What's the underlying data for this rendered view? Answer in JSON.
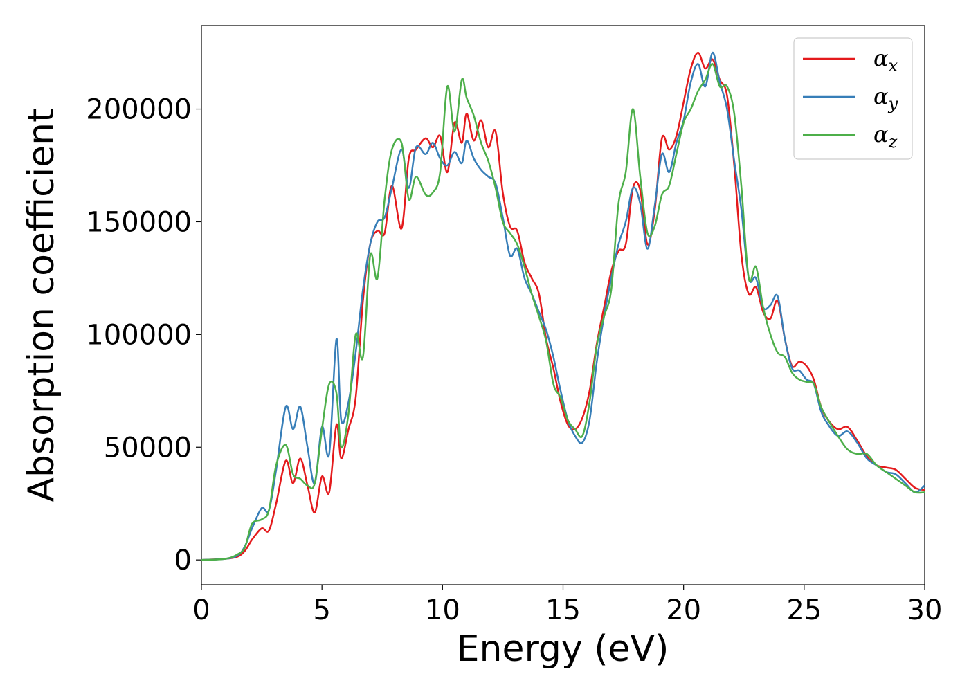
{
  "chart_data": {
    "type": "line",
    "title": "",
    "xlabel": "Energy (eV)",
    "ylabel": "Absorption coefficient",
    "xlim": [
      0,
      30
    ],
    "ylim": [
      -11000,
      237000
    ],
    "xticks": [
      0,
      5,
      10,
      15,
      20,
      25,
      30
    ],
    "yticks": [
      0,
      50000,
      100000,
      150000,
      200000
    ],
    "grid": false,
    "legend": "top-right",
    "series": [
      {
        "name": "αx",
        "base": "α",
        "sub": "x",
        "color": "#e41a1c",
        "x": [
          0,
          1,
          1.5,
          1.8,
          2.1,
          2.5,
          2.8,
          3.1,
          3.5,
          3.8,
          4.1,
          4.4,
          4.7,
          5.0,
          5.3,
          5.6,
          5.8,
          6.1,
          6.4,
          6.7,
          7.0,
          7.3,
          7.6,
          7.9,
          8.3,
          8.6,
          8.9,
          9.3,
          9.6,
          9.9,
          10.2,
          10.5,
          10.8,
          11.0,
          11.3,
          11.6,
          11.9,
          12.2,
          12.5,
          12.8,
          13.1,
          13.4,
          13.7,
          14.0,
          14.3,
          14.6,
          14.9,
          15.2,
          15.5,
          15.8,
          16.1,
          16.4,
          16.7,
          17.0,
          17.3,
          17.6,
          17.9,
          18.2,
          18.5,
          18.8,
          19.1,
          19.4,
          19.7,
          20.0,
          20.3,
          20.6,
          20.9,
          21.2,
          21.5,
          21.8,
          22.1,
          22.4,
          22.7,
          23.0,
          23.3,
          23.6,
          23.9,
          24.2,
          24.5,
          24.8,
          25.1,
          25.4,
          25.7,
          26.0,
          26.4,
          26.8,
          27.2,
          27.6,
          28.0,
          28.4,
          28.8,
          29.2,
          29.6,
          30
        ],
        "y": [
          0,
          500,
          1500,
          4000,
          9000,
          14000,
          13000,
          25000,
          44000,
          34000,
          45000,
          33000,
          21000,
          37000,
          30000,
          60000,
          45000,
          58000,
          72000,
          115000,
          140000,
          146000,
          145000,
          166000,
          147000,
          178000,
          182000,
          187000,
          183000,
          188000,
          172000,
          194000,
          185000,
          198000,
          186000,
          195000,
          183000,
          190000,
          163000,
          148000,
          146000,
          132000,
          125000,
          118000,
          98000,
          85000,
          70000,
          60000,
          58000,
          63000,
          75000,
          96000,
          112000,
          128000,
          137000,
          140000,
          165000,
          164000,
          140000,
          155000,
          187000,
          182000,
          188000,
          203000,
          218000,
          225000,
          218000,
          222000,
          213000,
          206000,
          175000,
          135000,
          118000,
          121000,
          110000,
          107000,
          115000,
          98000,
          86000,
          88000,
          86000,
          80000,
          68000,
          62000,
          58000,
          59000,
          53000,
          46000,
          42000,
          41000,
          40000,
          36000,
          32000,
          31000
        ]
      },
      {
        "name": "αy",
        "base": "α",
        "sub": "y",
        "color": "#377eb8",
        "x": [
          0,
          1,
          1.5,
          1.8,
          2.1,
          2.5,
          2.8,
          3.1,
          3.5,
          3.8,
          4.1,
          4.4,
          4.7,
          5.0,
          5.3,
          5.6,
          5.8,
          6.1,
          6.4,
          6.7,
          7.0,
          7.3,
          7.6,
          7.9,
          8.3,
          8.6,
          8.9,
          9.3,
          9.6,
          9.9,
          10.2,
          10.5,
          10.8,
          11.0,
          11.3,
          11.6,
          11.9,
          12.2,
          12.5,
          12.8,
          13.1,
          13.4,
          13.7,
          14.0,
          14.3,
          14.6,
          14.9,
          15.2,
          15.5,
          15.8,
          16.1,
          16.4,
          16.7,
          17.0,
          17.3,
          17.6,
          17.9,
          18.2,
          18.5,
          18.8,
          19.1,
          19.4,
          19.7,
          20.0,
          20.3,
          20.6,
          20.9,
          21.2,
          21.5,
          21.8,
          22.1,
          22.4,
          22.7,
          23.0,
          23.3,
          23.6,
          23.9,
          24.2,
          24.5,
          24.8,
          25.1,
          25.4,
          25.7,
          26.0,
          26.4,
          26.8,
          27.2,
          27.6,
          28.0,
          28.4,
          28.8,
          29.2,
          29.6,
          30
        ],
        "y": [
          0,
          500,
          2000,
          6000,
          14000,
          23000,
          22000,
          40000,
          68000,
          58000,
          68000,
          50000,
          34000,
          59000,
          47000,
          98000,
          62000,
          70000,
          92000,
          120000,
          140000,
          150000,
          152000,
          165000,
          182000,
          165000,
          183000,
          180000,
          185000,
          178000,
          175000,
          181000,
          176000,
          186000,
          178000,
          173000,
          170000,
          167000,
          152000,
          135000,
          138000,
          125000,
          118000,
          110000,
          102000,
          90000,
          75000,
          62000,
          55000,
          52000,
          62000,
          88000,
          108000,
          125000,
          140000,
          150000,
          165000,
          158000,
          138000,
          157000,
          180000,
          172000,
          185000,
          195000,
          212000,
          220000,
          210000,
          225000,
          212000,
          200000,
          177000,
          155000,
          125000,
          125000,
          112000,
          113000,
          117000,
          98000,
          85000,
          84000,
          80000,
          78000,
          66000,
          60000,
          55000,
          57000,
          52000,
          45000,
          42000,
          39000,
          38000,
          34000,
          30000,
          33000
        ]
      },
      {
        "name": "αz",
        "base": "α",
        "sub": "z",
        "color": "#4daf4a",
        "x": [
          0,
          1,
          1.5,
          1.8,
          2.1,
          2.5,
          2.8,
          3.1,
          3.5,
          3.8,
          4.1,
          4.4,
          4.7,
          5.0,
          5.3,
          5.6,
          5.8,
          6.1,
          6.4,
          6.7,
          7.0,
          7.3,
          7.6,
          7.9,
          8.3,
          8.6,
          8.9,
          9.3,
          9.6,
          9.9,
          10.2,
          10.5,
          10.8,
          11.0,
          11.3,
          11.6,
          11.9,
          12.2,
          12.5,
          12.8,
          13.1,
          13.4,
          13.7,
          14.0,
          14.3,
          14.6,
          14.9,
          15.2,
          15.5,
          15.8,
          16.1,
          16.4,
          16.7,
          17.0,
          17.3,
          17.6,
          17.9,
          18.2,
          18.5,
          18.8,
          19.1,
          19.4,
          19.7,
          20.0,
          20.3,
          20.6,
          20.9,
          21.2,
          21.5,
          21.8,
          22.1,
          22.4,
          22.7,
          23.0,
          23.3,
          23.6,
          23.9,
          24.2,
          24.5,
          24.8,
          25.1,
          25.4,
          25.7,
          26.0,
          26.4,
          26.8,
          27.2,
          27.6,
          28.0,
          28.4,
          28.8,
          29.2,
          29.6,
          30
        ],
        "y": [
          0,
          500,
          2500,
          5500,
          16000,
          18000,
          22000,
          42000,
          51000,
          38000,
          36000,
          33000,
          34000,
          58000,
          78000,
          74000,
          50000,
          65000,
          100000,
          90000,
          135000,
          125000,
          160000,
          182000,
          185000,
          160000,
          170000,
          162000,
          163000,
          172000,
          210000,
          190000,
          213000,
          205000,
          197000,
          185000,
          177000,
          165000,
          150000,
          145000,
          140000,
          130000,
          118000,
          108000,
          97000,
          78000,
          72000,
          62000,
          58000,
          55000,
          70000,
          95000,
          108000,
          120000,
          158000,
          172000,
          200000,
          170000,
          145000,
          148000,
          162000,
          166000,
          180000,
          194000,
          200000,
          208000,
          213000,
          220000,
          210000,
          210000,
          198000,
          165000,
          125000,
          130000,
          112000,
          100000,
          92000,
          90000,
          83000,
          80000,
          79000,
          78000,
          68000,
          62000,
          55000,
          49000,
          47000,
          47000,
          42000,
          39000,
          36000,
          33000,
          30000,
          30000
        ]
      }
    ]
  }
}
